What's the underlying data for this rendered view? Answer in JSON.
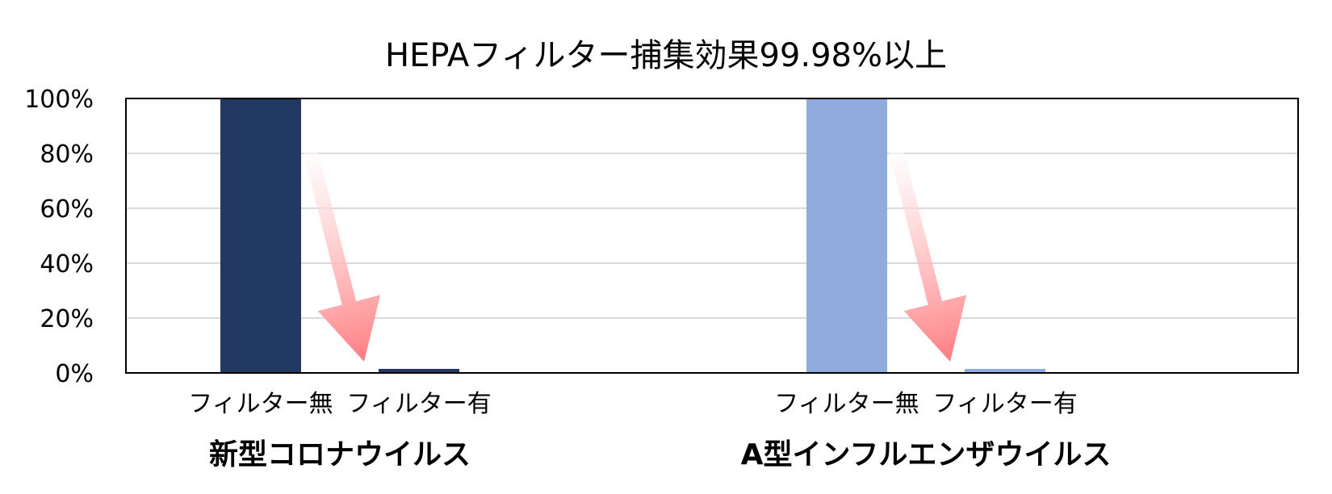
{
  "chart_data": {
    "type": "bar",
    "title": "HEPAフィルター捕集効果99.98%以上",
    "groups": [
      {
        "name": "新型コロナウイルス",
        "color": "#223962",
        "categories": [
          "フィルター無",
          "フィルター有"
        ],
        "values": [
          100,
          0.02
        ]
      },
      {
        "name": "A型インフルエンザウイルス",
        "color": "#8FAADC",
        "categories": [
          "フィルター無",
          "フィルター有"
        ],
        "values": [
          100,
          0.02
        ]
      }
    ],
    "ylim": [
      0,
      100
    ],
    "yticks": [
      "0%",
      "20%",
      "40%",
      "60%",
      "80%",
      "100%"
    ],
    "grid": true,
    "arrow_color": "#FF7C80"
  }
}
